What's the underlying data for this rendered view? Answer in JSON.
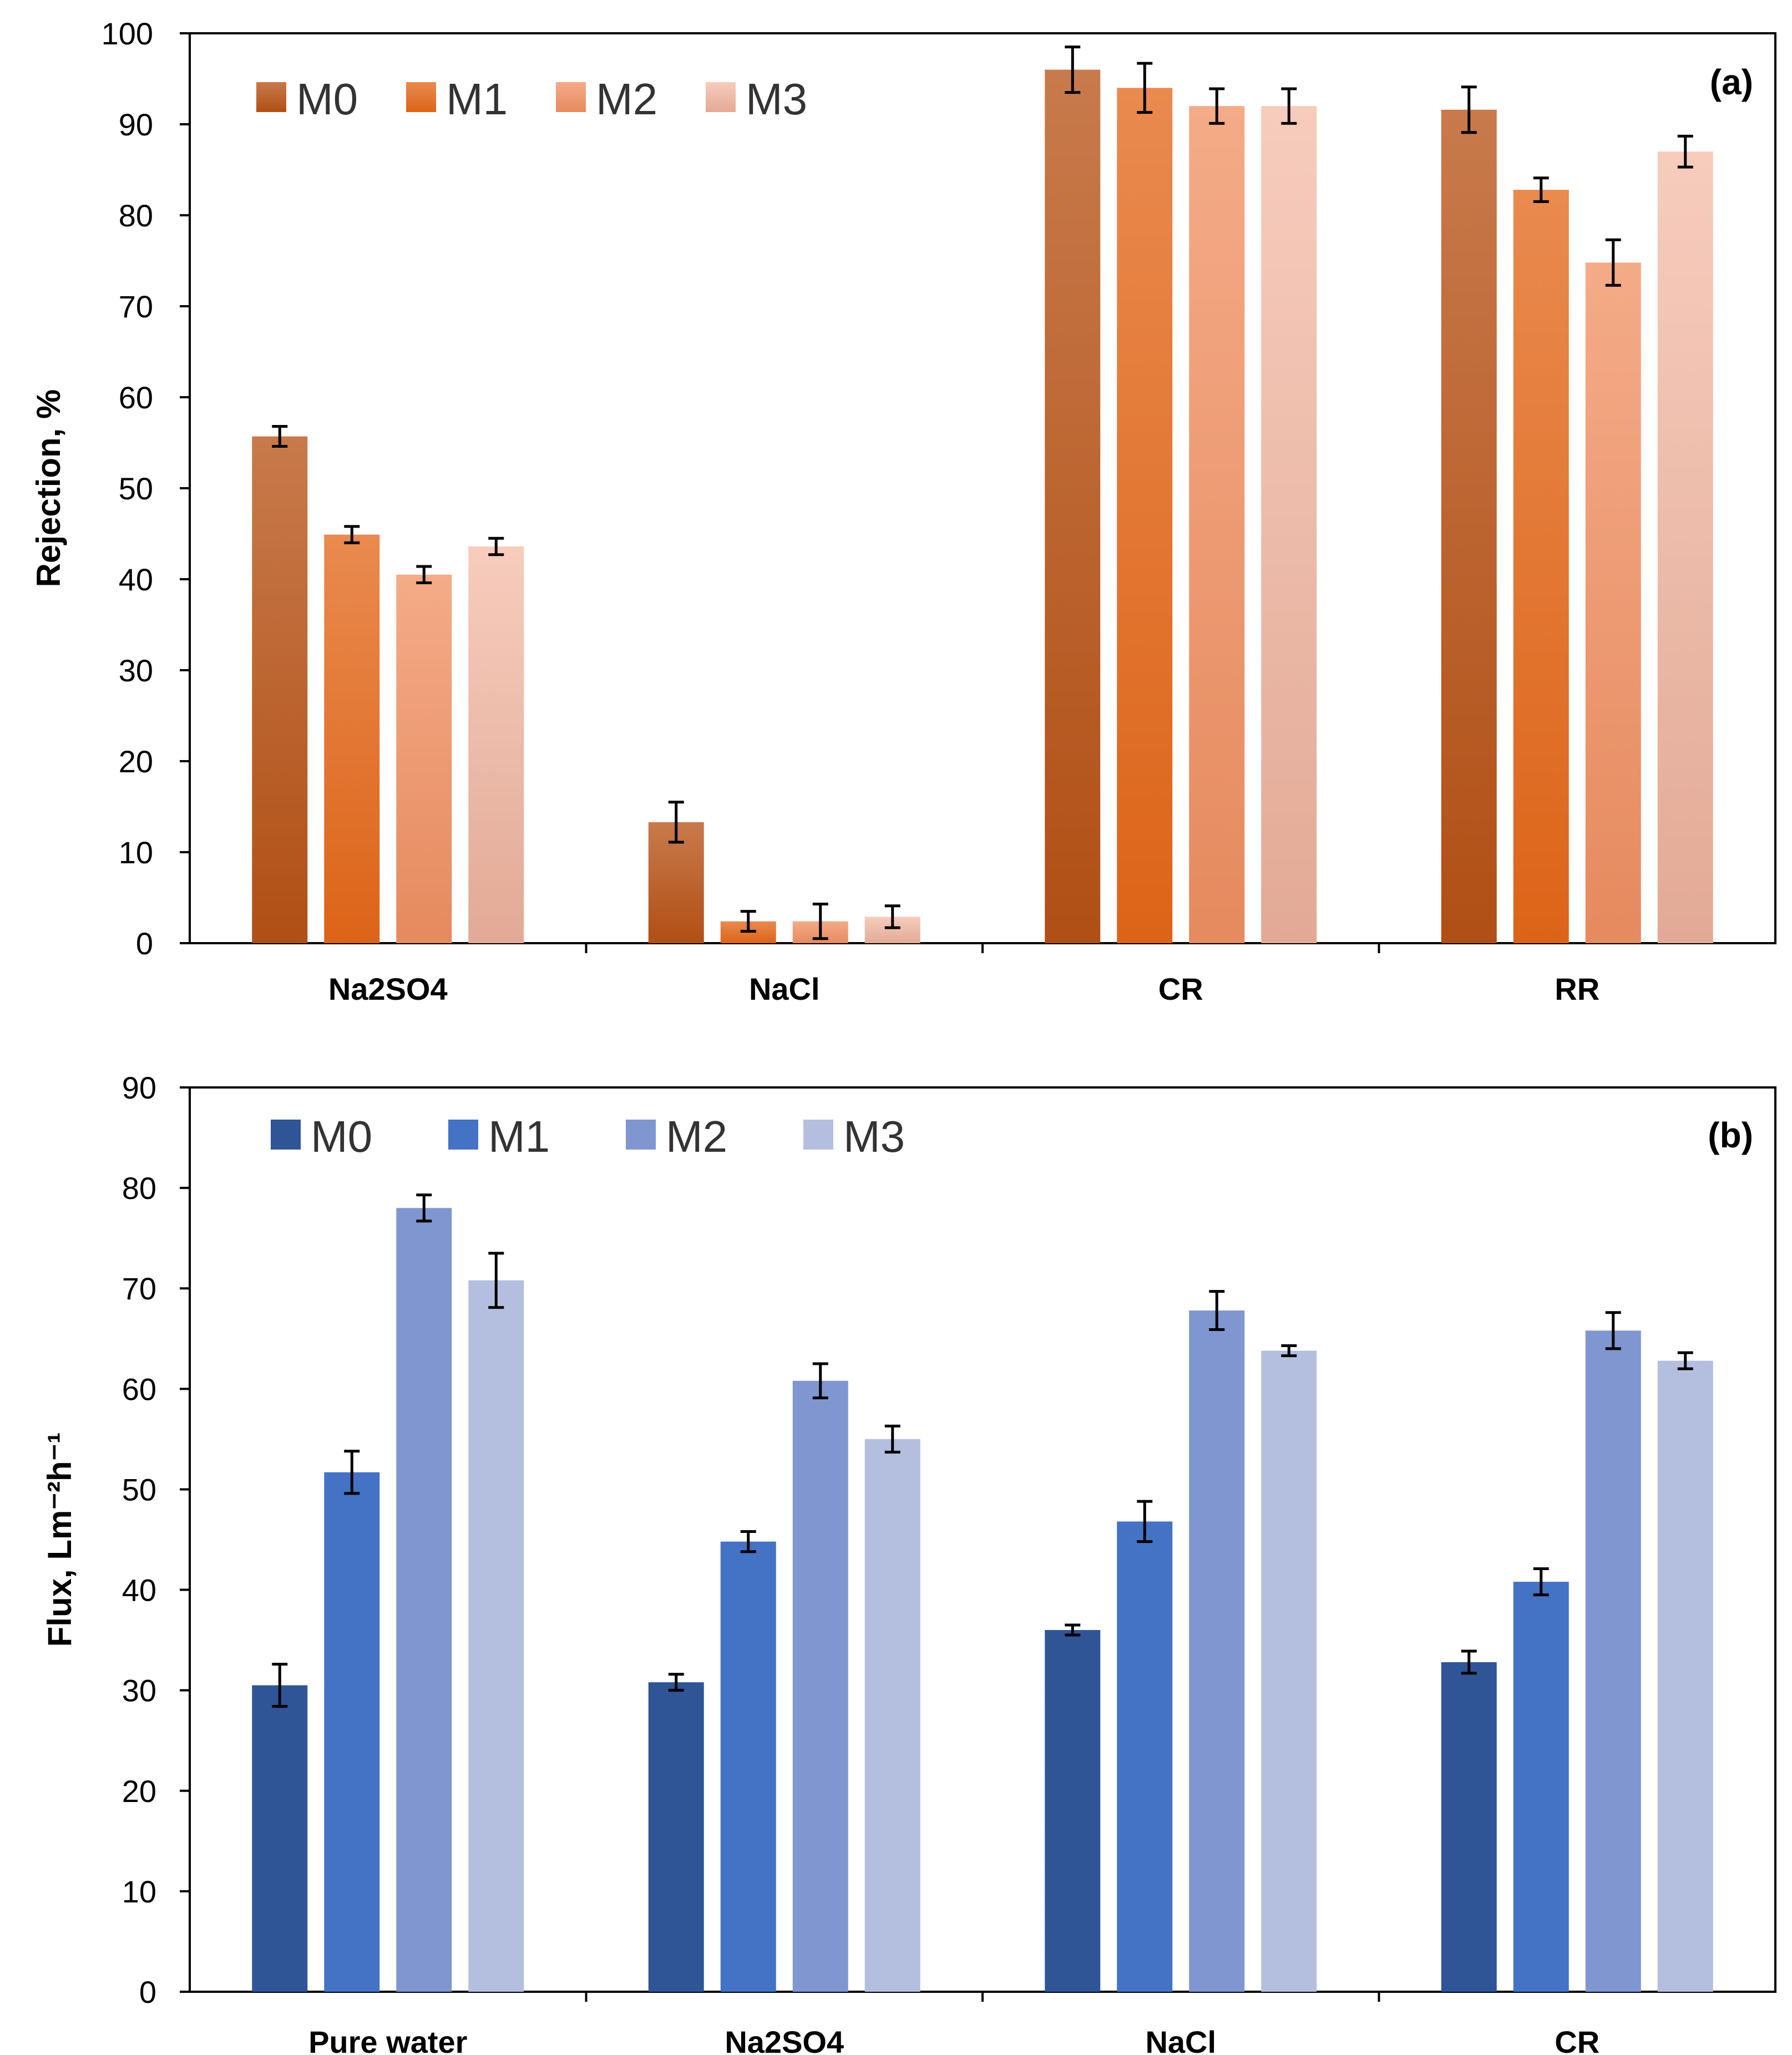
{
  "series_names": [
    "M0",
    "M1",
    "M2",
    "M3"
  ],
  "chart_data": [
    {
      "type": "bar",
      "panel_label": "(a)",
      "title": "",
      "xlabel": "",
      "ylabel": "Rejection, %",
      "ylim": [
        0,
        100
      ],
      "yticks": [
        0,
        10,
        20,
        30,
        40,
        50,
        60,
        70,
        80,
        90,
        100
      ],
      "categories": [
        "Na2SO4",
        "NaCl",
        "CR",
        "RR"
      ],
      "legend_position": "top-left",
      "series": [
        {
          "name": "M0",
          "colors": [
            "#c87a4c",
            "#b04f15"
          ],
          "values": [
            55.7,
            13.3,
            96.0,
            91.6
          ],
          "errors": [
            1.1,
            2.2,
            2.5,
            2.5
          ]
        },
        {
          "name": "M1",
          "colors": [
            "#e98a4f",
            "#dc6418"
          ],
          "values": [
            44.9,
            2.4,
            94.0,
            82.8
          ],
          "errors": [
            0.9,
            1.1,
            2.7,
            1.3
          ]
        },
        {
          "name": "M2",
          "colors": [
            "#f4ab87",
            "#e68a5f"
          ],
          "values": [
            40.5,
            2.4,
            92.0,
            74.8
          ],
          "errors": [
            0.9,
            1.9,
            1.9,
            2.5
          ]
        },
        {
          "name": "M3",
          "colors": [
            "#f7ccbd",
            "#e2aa96"
          ],
          "values": [
            43.6,
            2.9,
            92.0,
            87.0
          ],
          "errors": [
            0.9,
            1.2,
            1.9,
            1.7
          ]
        }
      ]
    },
    {
      "type": "bar",
      "panel_label": "(b)",
      "title": "",
      "xlabel": "",
      "ylabel": "Flux, Lm⁻²h⁻¹",
      "ylim": [
        0,
        90
      ],
      "yticks": [
        0,
        10,
        20,
        30,
        40,
        50,
        60,
        70,
        80,
        90
      ],
      "categories": [
        "Pure water",
        "Na2SO4",
        "NaCl",
        "CR"
      ],
      "legend_position": "top-left",
      "series": [
        {
          "name": "M0",
          "colors": [
            "#2f5597",
            "#2f5597"
          ],
          "values": [
            30.5,
            30.8,
            36.0,
            32.8
          ],
          "errors": [
            2.1,
            0.8,
            0.5,
            1.1
          ]
        },
        {
          "name": "M1",
          "colors": [
            "#4472c4",
            "#4472c4"
          ],
          "values": [
            51.7,
            44.8,
            46.8,
            40.8
          ],
          "errors": [
            2.1,
            1.0,
            2.0,
            1.3
          ]
        },
        {
          "name": "M2",
          "colors": [
            "#7f96d0",
            "#7f96d0"
          ],
          "values": [
            78.0,
            60.8,
            67.8,
            65.8
          ],
          "errors": [
            1.3,
            1.7,
            1.9,
            1.8
          ]
        },
        {
          "name": "M3",
          "colors": [
            "#b4bfdf",
            "#b4bfdf"
          ],
          "values": [
            70.8,
            55.0,
            63.8,
            62.8
          ],
          "errors": [
            2.7,
            1.3,
            0.5,
            0.8
          ]
        }
      ]
    }
  ]
}
